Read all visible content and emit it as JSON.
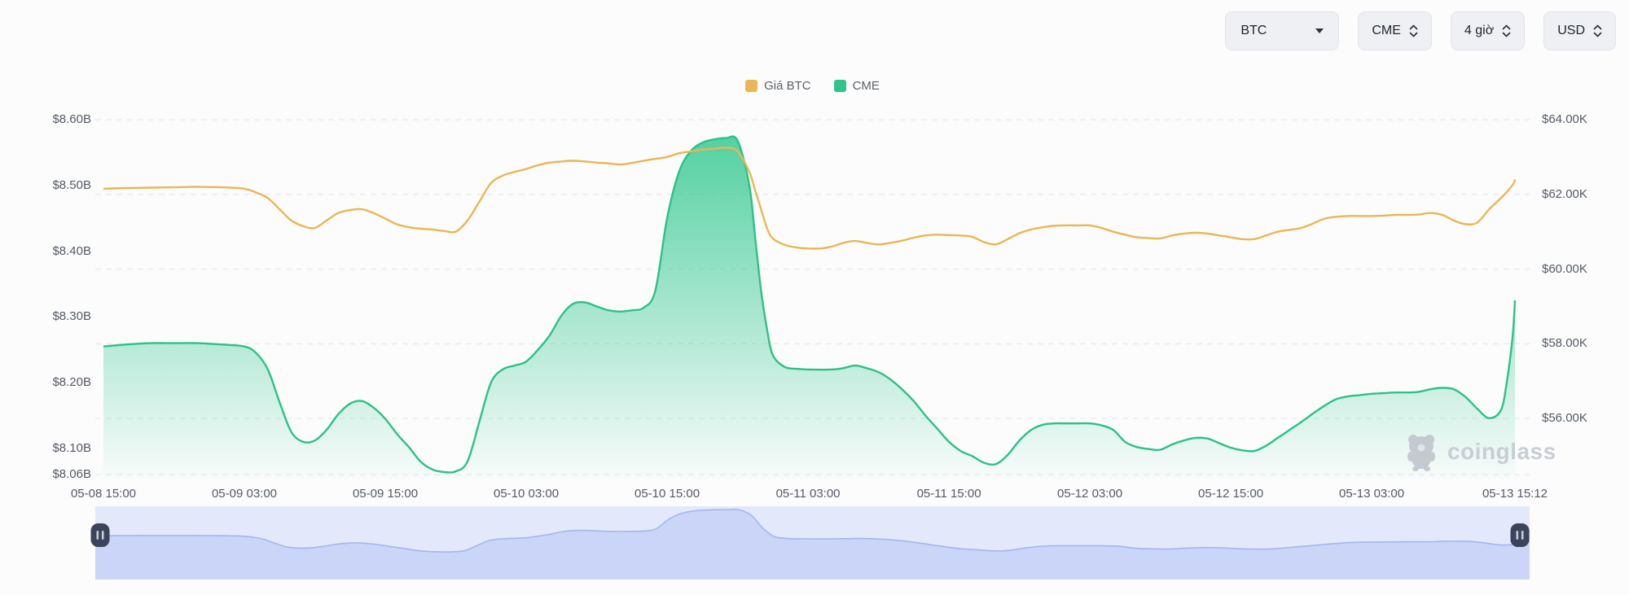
{
  "controls": {
    "symbol_label": "BTC",
    "exchange_label": "CME",
    "interval_label": "4 giờ",
    "currency_label": "USD"
  },
  "legend": {
    "items": [
      {
        "label": "Giá BTC",
        "color": "#e9b754"
      },
      {
        "label": "CME",
        "color": "#2ec48c"
      }
    ]
  },
  "watermark": {
    "text": "coinglass"
  },
  "colors": {
    "btc_line": "#e9b754",
    "cme_line": "#2bc287",
    "cme_fill_top": "rgba(45,198,141,0.85)",
    "cme_fill_bottom": "rgba(45,198,141,0.02)",
    "grid": "#e7e8eb",
    "axis_text": "#545a63",
    "nav_bg": "#e3e9fb",
    "nav_fill": "#cad5f7",
    "nav_line": "#a3b6ee",
    "nav_handle": "#3b445c"
  },
  "chart_data": {
    "type": "area",
    "title": "",
    "legend_position": "top-center",
    "grid": "horizontal-dashed",
    "x_axis": {
      "start": "05-08 15:00",
      "end": "05-13 15:12",
      "total_hours": 120.2,
      "ticks": [
        {
          "t": 0,
          "label": "05-08 15:00"
        },
        {
          "t": 12,
          "label": "05-09 03:00"
        },
        {
          "t": 24,
          "label": "05-09 15:00"
        },
        {
          "t": 36,
          "label": "05-10 03:00"
        },
        {
          "t": 48,
          "label": "05-10 15:00"
        },
        {
          "t": 60,
          "label": "05-11 03:00"
        },
        {
          "t": 72,
          "label": "05-11 15:00"
        },
        {
          "t": 84,
          "label": "05-12 03:00"
        },
        {
          "t": 96,
          "label": "05-12 15:00"
        },
        {
          "t": 108,
          "label": "05-13 03:00"
        },
        {
          "t": 120.2,
          "label": "05-13 15:12"
        }
      ]
    },
    "left_axis": {
      "unit": "USD billions (CME open interest)",
      "min": 8.054,
      "max": 8.6,
      "ticks": [
        {
          "v": 8.6,
          "label": "$8.60B"
        },
        {
          "v": 8.5,
          "label": "$8.50B"
        },
        {
          "v": 8.4,
          "label": "$8.40B"
        },
        {
          "v": 8.3,
          "label": "$8.30B"
        },
        {
          "v": 8.2,
          "label": "$8.20B"
        },
        {
          "v": 8.1,
          "label": "$8.10B"
        },
        {
          "v": 8.06,
          "label": "$8.06B"
        }
      ]
    },
    "right_axis": {
      "unit": "USD thousands (BTC price)",
      "min": 54.39,
      "max": 64.0,
      "ticks": [
        {
          "v": 64,
          "label": "$64.00K"
        },
        {
          "v": 62,
          "label": "$62.00K"
        },
        {
          "v": 60,
          "label": "$60.00K"
        },
        {
          "v": 58,
          "label": "$58.00K"
        },
        {
          "v": 56,
          "label": "$56.00K"
        }
      ]
    },
    "series": [
      {
        "name": "Giá BTC",
        "type": "line",
        "axis": "right",
        "unit": "K USD",
        "points": [
          [
            0,
            62.15
          ],
          [
            2,
            62.17
          ],
          [
            4,
            62.18
          ],
          [
            6,
            62.19
          ],
          [
            8,
            62.2
          ],
          [
            10,
            62.19
          ],
          [
            12,
            62.15
          ],
          [
            13,
            62.05
          ],
          [
            14,
            61.9
          ],
          [
            15,
            61.6
          ],
          [
            16,
            61.3
          ],
          [
            17,
            61.15
          ],
          [
            18,
            61.1
          ],
          [
            19,
            61.3
          ],
          [
            20,
            61.5
          ],
          [
            21,
            61.58
          ],
          [
            22,
            61.6
          ],
          [
            23,
            61.5
          ],
          [
            24,
            61.35
          ],
          [
            25,
            61.2
          ],
          [
            26,
            61.12
          ],
          [
            27,
            61.08
          ],
          [
            28,
            61.06
          ],
          [
            29,
            61.02
          ],
          [
            30,
            61.0
          ],
          [
            31,
            61.3
          ],
          [
            32,
            61.8
          ],
          [
            33,
            62.3
          ],
          [
            34,
            62.5
          ],
          [
            35,
            62.6
          ],
          [
            36,
            62.68
          ],
          [
            37,
            62.78
          ],
          [
            38,
            62.85
          ],
          [
            39,
            62.88
          ],
          [
            40,
            62.9
          ],
          [
            41,
            62.88
          ],
          [
            42,
            62.85
          ],
          [
            43,
            62.83
          ],
          [
            44,
            62.8
          ],
          [
            45,
            62.84
          ],
          [
            46,
            62.9
          ],
          [
            47,
            62.95
          ],
          [
            48,
            63.0
          ],
          [
            49,
            63.1
          ],
          [
            50,
            63.15
          ],
          [
            51,
            63.2
          ],
          [
            52,
            63.22
          ],
          [
            53,
            63.25
          ],
          [
            54,
            63.15
          ],
          [
            55,
            62.6
          ],
          [
            55.5,
            62.1
          ],
          [
            56,
            61.6
          ],
          [
            56.5,
            61.1
          ],
          [
            57,
            60.82
          ],
          [
            58,
            60.65
          ],
          [
            59,
            60.58
          ],
          [
            60,
            60.55
          ],
          [
            61,
            60.55
          ],
          [
            62,
            60.6
          ],
          [
            63,
            60.7
          ],
          [
            64,
            60.75
          ],
          [
            65,
            60.7
          ],
          [
            66,
            60.66
          ],
          [
            67,
            60.7
          ],
          [
            68,
            60.76
          ],
          [
            69,
            60.84
          ],
          [
            70,
            60.9
          ],
          [
            71,
            60.92
          ],
          [
            72,
            60.91
          ],
          [
            73,
            60.9
          ],
          [
            74,
            60.86
          ],
          [
            75,
            60.72
          ],
          [
            76,
            60.66
          ],
          [
            77,
            60.8
          ],
          [
            78,
            60.96
          ],
          [
            79,
            61.06
          ],
          [
            80,
            61.12
          ],
          [
            81,
            61.16
          ],
          [
            82,
            61.17
          ],
          [
            83,
            61.17
          ],
          [
            84,
            61.17
          ],
          [
            85,
            61.1
          ],
          [
            86,
            61.0
          ],
          [
            87,
            60.92
          ],
          [
            88,
            60.85
          ],
          [
            89,
            60.83
          ],
          [
            90,
            60.82
          ],
          [
            91,
            60.9
          ],
          [
            92,
            60.95
          ],
          [
            93,
            60.97
          ],
          [
            94,
            60.95
          ],
          [
            95,
            60.9
          ],
          [
            96,
            60.85
          ],
          [
            97,
            60.8
          ],
          [
            98,
            60.8
          ],
          [
            99,
            60.9
          ],
          [
            100,
            61.0
          ],
          [
            101,
            61.05
          ],
          [
            102,
            61.1
          ],
          [
            103,
            61.22
          ],
          [
            104,
            61.35
          ],
          [
            105,
            61.4
          ],
          [
            106,
            61.42
          ],
          [
            107,
            61.42
          ],
          [
            108,
            61.42
          ],
          [
            109,
            61.43
          ],
          [
            110,
            61.45
          ],
          [
            111,
            61.45
          ],
          [
            112,
            61.46
          ],
          [
            113,
            61.5
          ],
          [
            114,
            61.45
          ],
          [
            115,
            61.3
          ],
          [
            116,
            61.2
          ],
          [
            117,
            61.25
          ],
          [
            118,
            61.6
          ],
          [
            119,
            61.9
          ],
          [
            120,
            62.25
          ],
          [
            120.2,
            62.4
          ]
        ]
      },
      {
        "name": "CME",
        "type": "area",
        "axis": "left",
        "unit": "B USD",
        "points": [
          [
            0,
            8.255
          ],
          [
            2,
            8.258
          ],
          [
            4,
            8.26
          ],
          [
            6,
            8.26
          ],
          [
            8,
            8.26
          ],
          [
            10,
            8.258
          ],
          [
            12,
            8.255
          ],
          [
            13,
            8.245
          ],
          [
            14,
            8.22
          ],
          [
            15,
            8.17
          ],
          [
            16,
            8.125
          ],
          [
            17,
            8.11
          ],
          [
            18,
            8.112
          ],
          [
            19,
            8.128
          ],
          [
            20,
            8.152
          ],
          [
            21,
            8.168
          ],
          [
            22,
            8.172
          ],
          [
            23,
            8.162
          ],
          [
            24,
            8.145
          ],
          [
            25,
            8.122
          ],
          [
            26,
            8.102
          ],
          [
            27,
            8.08
          ],
          [
            28,
            8.068
          ],
          [
            29,
            8.064
          ],
          [
            30,
            8.065
          ],
          [
            31,
            8.08
          ],
          [
            32,
            8.14
          ],
          [
            33,
            8.2
          ],
          [
            34,
            8.22
          ],
          [
            35,
            8.226
          ],
          [
            36,
            8.232
          ],
          [
            37,
            8.25
          ],
          [
            38,
            8.272
          ],
          [
            39,
            8.302
          ],
          [
            40,
            8.32
          ],
          [
            41,
            8.322
          ],
          [
            42,
            8.316
          ],
          [
            43,
            8.31
          ],
          [
            44,
            8.308
          ],
          [
            45,
            8.31
          ],
          [
            46,
            8.314
          ],
          [
            47,
            8.34
          ],
          [
            48,
            8.45
          ],
          [
            49,
            8.52
          ],
          [
            50,
            8.552
          ],
          [
            51,
            8.565
          ],
          [
            52,
            8.57
          ],
          [
            53,
            8.572
          ],
          [
            54,
            8.568
          ],
          [
            55,
            8.5
          ],
          [
            55.5,
            8.42
          ],
          [
            56,
            8.34
          ],
          [
            56.5,
            8.282
          ],
          [
            57,
            8.242
          ],
          [
            58,
            8.224
          ],
          [
            59,
            8.221
          ],
          [
            60,
            8.22
          ],
          [
            62,
            8.22
          ],
          [
            63,
            8.222
          ],
          [
            64,
            8.226
          ],
          [
            65,
            8.222
          ],
          [
            66,
            8.216
          ],
          [
            67,
            8.205
          ],
          [
            68,
            8.19
          ],
          [
            69,
            8.172
          ],
          [
            70,
            8.15
          ],
          [
            71,
            8.13
          ],
          [
            72,
            8.11
          ],
          [
            73,
            8.096
          ],
          [
            74,
            8.088
          ],
          [
            75,
            8.078
          ],
          [
            76,
            8.076
          ],
          [
            77,
            8.09
          ],
          [
            78,
            8.112
          ],
          [
            79,
            8.128
          ],
          [
            80,
            8.136
          ],
          [
            81,
            8.138
          ],
          [
            82,
            8.138
          ],
          [
            83,
            8.138
          ],
          [
            84,
            8.138
          ],
          [
            85,
            8.135
          ],
          [
            86,
            8.128
          ],
          [
            87,
            8.11
          ],
          [
            88,
            8.102
          ],
          [
            89,
            8.099
          ],
          [
            90,
            8.098
          ],
          [
            91,
            8.106
          ],
          [
            92,
            8.112
          ],
          [
            93,
            8.116
          ],
          [
            94,
            8.115
          ],
          [
            95,
            8.108
          ],
          [
            96,
            8.101
          ],
          [
            97,
            8.097
          ],
          [
            98,
            8.096
          ],
          [
            99,
            8.104
          ],
          [
            100,
            8.116
          ],
          [
            101,
            8.128
          ],
          [
            102,
            8.14
          ],
          [
            103,
            8.153
          ],
          [
            104,
            8.165
          ],
          [
            105,
            8.175
          ],
          [
            106,
            8.179
          ],
          [
            107,
            8.181
          ],
          [
            108,
            8.183
          ],
          [
            109,
            8.184
          ],
          [
            110,
            8.185
          ],
          [
            111,
            8.185
          ],
          [
            112,
            8.186
          ],
          [
            113,
            8.19
          ],
          [
            114,
            8.192
          ],
          [
            115,
            8.19
          ],
          [
            116,
            8.178
          ],
          [
            117,
            8.16
          ],
          [
            118,
            8.146
          ],
          [
            119,
            8.158
          ],
          [
            119.5,
            8.2
          ],
          [
            120,
            8.27
          ],
          [
            120.2,
            8.325
          ]
        ]
      }
    ],
    "navigator": {
      "mirrors_series": "CME"
    }
  }
}
